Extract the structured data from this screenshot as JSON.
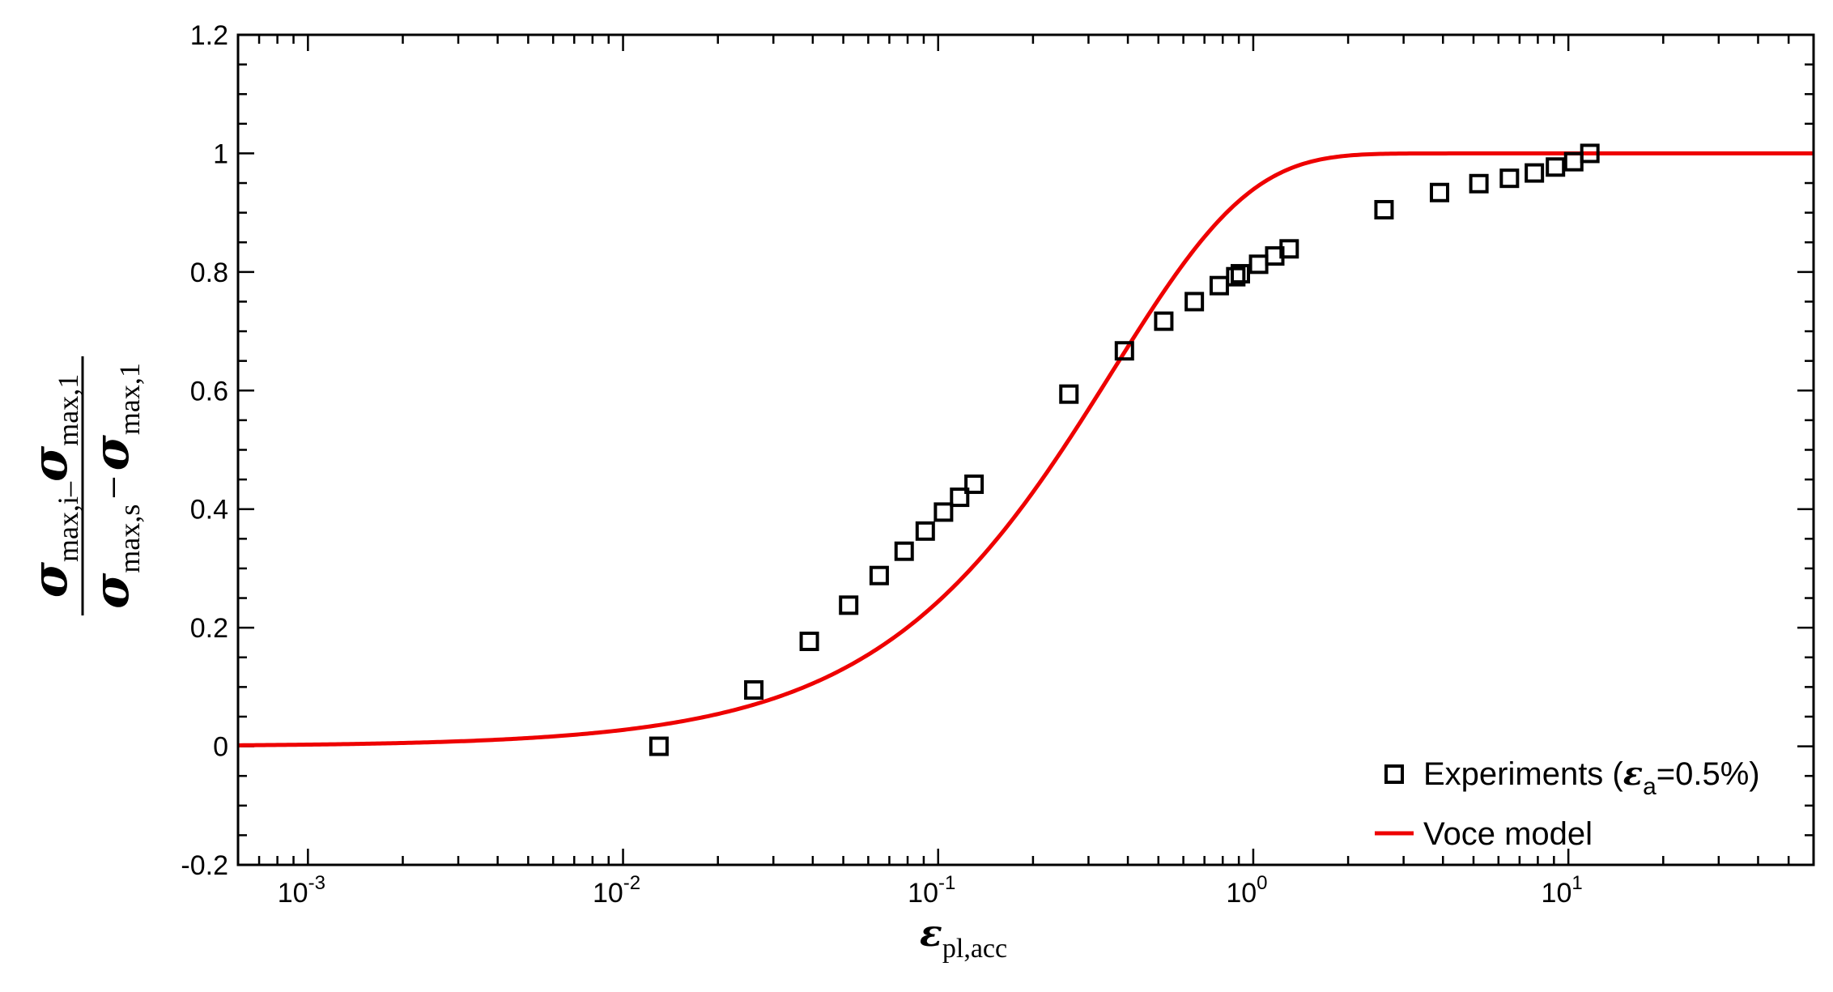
{
  "chart_data": {
    "type": "scatter",
    "x_scale": "log",
    "xlim": [
      0.0006,
      60
    ],
    "ylim": [
      -0.2,
      1.2
    ],
    "xticks": [
      {
        "base": "10",
        "exp": "-3",
        "value": 0.001
      },
      {
        "base": "10",
        "exp": "-2",
        "value": 0.01
      },
      {
        "base": "10",
        "exp": "-1",
        "value": 0.1
      },
      {
        "base": "10",
        "exp": "0",
        "value": 1
      },
      {
        "base": "10",
        "exp": "1",
        "value": 10
      }
    ],
    "yticks": [
      "-0.2",
      "0",
      "0.2",
      "0.4",
      "0.6",
      "0.8",
      "1",
      "1.2"
    ],
    "xlabel": {
      "symbol": "ε",
      "sub": "pl,acc"
    },
    "ylabel": {
      "num_sym1": "σ",
      "num_sub1": "max,",
      "num_sub1_i": "i",
      "num_minus": "–",
      "num_sym2": "σ",
      "num_sub2": "max,1",
      "den_sym1": "σ",
      "den_sub1": "max,s",
      "den_minus": "−",
      "den_sym2": "σ",
      "den_sub2": "max,1"
    },
    "grid": false,
    "legend_position": "bottom-right",
    "legend": {
      "experiments_prefix": "Experiments (",
      "experiments_symbol": "ε",
      "experiments_sub": "a",
      "experiments_suffix": "=0.5%)",
      "model": "Voce model"
    },
    "series": [
      {
        "kind": "markers",
        "marker": "open-square",
        "color": "#000000",
        "points": [
          [
            0.013,
            0.0
          ],
          [
            0.026,
            0.095
          ],
          [
            0.039,
            0.177
          ],
          [
            0.052,
            0.238
          ],
          [
            0.065,
            0.288
          ],
          [
            0.078,
            0.329
          ],
          [
            0.091,
            0.363
          ],
          [
            0.104,
            0.395
          ],
          [
            0.117,
            0.42
          ],
          [
            0.13,
            0.442
          ],
          [
            0.26,
            0.594
          ],
          [
            0.39,
            0.667
          ],
          [
            0.52,
            0.717
          ],
          [
            0.65,
            0.75
          ],
          [
            0.78,
            0.777
          ],
          [
            0.88,
            0.792
          ],
          [
            0.91,
            0.797
          ],
          [
            1.04,
            0.813
          ],
          [
            1.17,
            0.827
          ],
          [
            1.3,
            0.839
          ],
          [
            2.6,
            0.905
          ],
          [
            3.9,
            0.934
          ],
          [
            5.2,
            0.949
          ],
          [
            6.5,
            0.958
          ],
          [
            7.8,
            0.967
          ],
          [
            9.1,
            0.977
          ],
          [
            10.4,
            0.986
          ],
          [
            11.7,
            1.0
          ]
        ]
      },
      {
        "kind": "line",
        "color": "#ee0000",
        "model": "voce",
        "b": 2.8
      }
    ]
  }
}
